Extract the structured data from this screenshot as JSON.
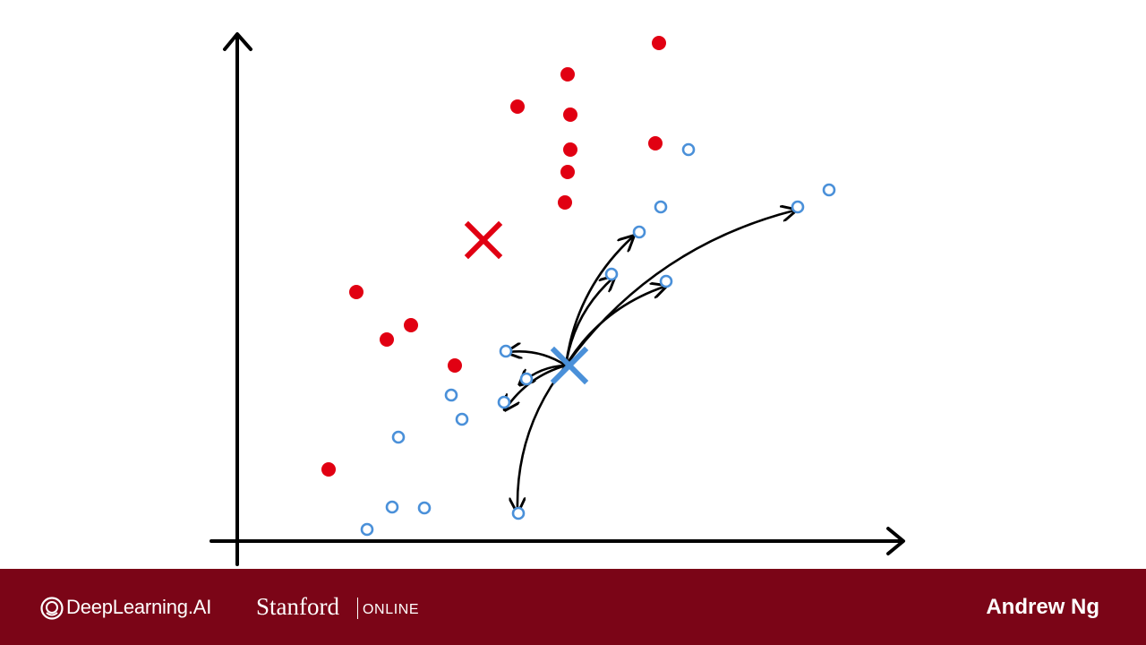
{
  "footer": {
    "brand": "DeepLearning.AI",
    "university": "Stanford",
    "university_suffix": "ONLINE",
    "author": "Andrew Ng"
  },
  "colors": {
    "red_class": "#e10012",
    "blue_class": "#4a90d9",
    "arrows": "#000000",
    "footer_bg": "#7b0517"
  },
  "icons": [
    "deeplearning-logo-icon"
  ],
  "chart_data": {
    "type": "scatter",
    "title": "",
    "xlabel": "",
    "ylabel": "",
    "series": [
      {
        "marker": "filled-circle",
        "color": "#e10012",
        "points": [
          [
            736,
            48
          ],
          [
            634,
            83
          ],
          [
            578,
            119
          ],
          [
            637,
            128
          ],
          [
            637,
            167
          ],
          [
            732,
            160
          ],
          [
            634,
            192
          ],
          [
            631,
            226
          ],
          [
            398,
            326
          ],
          [
            459,
            363
          ],
          [
            432,
            379
          ],
          [
            508,
            408
          ],
          [
            367,
            524
          ]
        ]
      },
      {
        "marker": "hollow-circle",
        "color": "#4a90d9",
        "points": [
          [
            769,
            167
          ],
          [
            926,
            212
          ],
          [
            891,
            231
          ],
          [
            738,
            231
          ],
          [
            714,
            259
          ],
          [
            683,
            306
          ],
          [
            744,
            314
          ],
          [
            565,
            392
          ],
          [
            588,
            423
          ],
          [
            504,
            441
          ],
          [
            563,
            449
          ],
          [
            516,
            468
          ],
          [
            445,
            488
          ],
          [
            438,
            566
          ],
          [
            474,
            567
          ],
          [
            579,
            573
          ],
          [
            410,
            591
          ]
        ]
      }
    ],
    "centroids": [
      {
        "class": "red",
        "marker": "x",
        "color": "#e10012",
        "point": [
          540,
          268
        ]
      },
      {
        "class": "blue",
        "marker": "x",
        "color": "#4a90d9",
        "point": [
          636,
          408
        ]
      }
    ],
    "arrows_from_blue_centroid_to": [
      [
        706,
        265
      ],
      [
        685,
        310
      ],
      [
        742,
        320
      ],
      [
        887,
        235
      ],
      [
        568,
        393
      ],
      [
        582,
        428
      ],
      [
        565,
        456
      ],
      [
        578,
        570
      ]
    ]
  }
}
